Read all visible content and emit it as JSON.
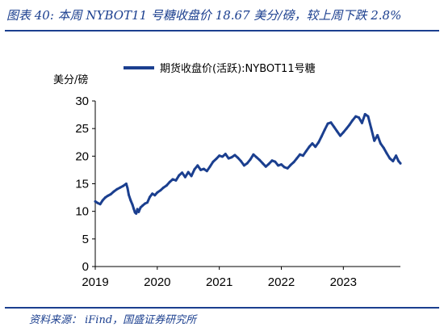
{
  "figure": {
    "title": "图表 40: 本周 NYBOT11 号糖收盘价 18.67 美分/磅，较上周下跌 2.8%",
    "source": "资料来源： iFind，国盛证券研究所"
  },
  "colors": {
    "series": "#1b3f8f",
    "heading": "#1b3f8f",
    "axis": "#000000"
  },
  "chart_data": {
    "type": "line",
    "title": "",
    "xlabel": "",
    "ylabel": "美分/磅",
    "ylim": [
      0,
      30
    ],
    "yticks": [
      0,
      5,
      10,
      15,
      20,
      25,
      30
    ],
    "xlim": [
      2019.0,
      2023.92
    ],
    "xticks": [
      2019,
      2020,
      2021,
      2022,
      2023
    ],
    "grid": false,
    "legend_position": "top-center",
    "series": [
      {
        "name": "期货收盘价(活跃):NYBOT11号糖",
        "x": [
          2019.0,
          2019.04,
          2019.08,
          2019.12,
          2019.16,
          2019.2,
          2019.25,
          2019.3,
          2019.35,
          2019.4,
          2019.45,
          2019.5,
          2019.52,
          2019.54,
          2019.57,
          2019.6,
          2019.62,
          2019.64,
          2019.66,
          2019.68,
          2019.7,
          2019.73,
          2019.76,
          2019.8,
          2019.84,
          2019.88,
          2019.92,
          2019.96,
          2020.0,
          2020.05,
          2020.1,
          2020.15,
          2020.2,
          2020.25,
          2020.3,
          2020.35,
          2020.4,
          2020.45,
          2020.5,
          2020.55,
          2020.6,
          2020.65,
          2020.7,
          2020.75,
          2020.8,
          2020.85,
          2020.9,
          2020.95,
          2021.0,
          2021.05,
          2021.1,
          2021.15,
          2021.2,
          2021.25,
          2021.3,
          2021.35,
          2021.4,
          2021.45,
          2021.5,
          2021.55,
          2021.6,
          2021.65,
          2021.7,
          2021.75,
          2021.8,
          2021.85,
          2021.9,
          2021.95,
          2022.0,
          2022.05,
          2022.1,
          2022.15,
          2022.2,
          2022.25,
          2022.3,
          2022.35,
          2022.4,
          2022.45,
          2022.5,
          2022.55,
          2022.6,
          2022.65,
          2022.7,
          2022.75,
          2022.8,
          2022.85,
          2022.9,
          2022.95,
          2023.0,
          2023.05,
          2023.1,
          2023.15,
          2023.2,
          2023.25,
          2023.3,
          2023.35,
          2023.4,
          2023.45,
          2023.5,
          2023.55,
          2023.6,
          2023.65,
          2023.7,
          2023.75,
          2023.8,
          2023.85,
          2023.89,
          2023.92
        ],
        "values": [
          11.8,
          11.5,
          11.3,
          12.0,
          12.5,
          12.8,
          13.1,
          13.6,
          14.0,
          14.3,
          14.6,
          15.0,
          14.2,
          13.0,
          12.0,
          11.2,
          10.5,
          9.8,
          9.6,
          10.4,
          9.9,
          10.7,
          11.0,
          11.4,
          11.6,
          12.6,
          13.2,
          12.9,
          13.4,
          13.8,
          14.3,
          14.7,
          15.3,
          15.8,
          15.6,
          16.5,
          17.0,
          16.2,
          17.1,
          16.4,
          17.6,
          18.3,
          17.5,
          17.7,
          17.3,
          18.1,
          19.0,
          19.5,
          20.1,
          19.9,
          20.4,
          19.6,
          19.8,
          20.2,
          19.7,
          19.1,
          18.3,
          18.7,
          19.4,
          20.3,
          19.8,
          19.3,
          18.7,
          18.1,
          18.6,
          19.2,
          19.0,
          18.3,
          18.5,
          18.0,
          17.8,
          18.4,
          18.9,
          19.6,
          20.3,
          20.1,
          20.9,
          21.7,
          22.3,
          21.7,
          22.5,
          23.6,
          24.8,
          25.9,
          26.1,
          25.3,
          24.5,
          23.7,
          24.3,
          25.0,
          25.7,
          26.5,
          27.2,
          27.0,
          26.0,
          27.6,
          27.2,
          25.0,
          22.8,
          23.8,
          22.3,
          21.5,
          20.5,
          19.6,
          19.1,
          20.1,
          19.1,
          18.7
        ]
      }
    ]
  }
}
